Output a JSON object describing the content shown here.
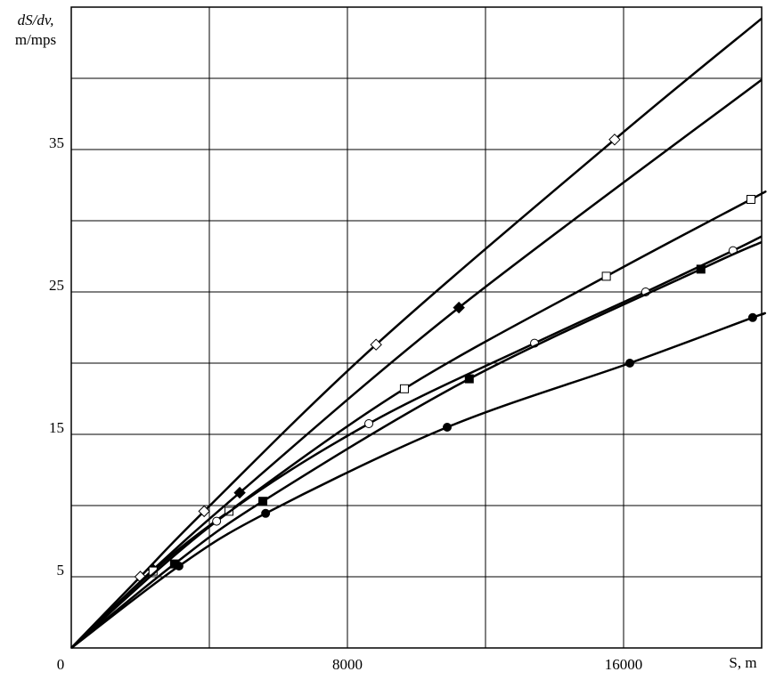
{
  "chart_data": {
    "type": "line",
    "y_label": [
      "dS/dv,",
      "m/mps"
    ],
    "x_label": "S, m",
    "xlim": [
      0,
      20000
    ],
    "ylim": [
      0,
      45
    ],
    "xticks": [
      0,
      8000,
      16000
    ],
    "yticks": [
      5,
      15,
      25,
      35
    ],
    "xgrid": [
      4000,
      8000,
      12000,
      16000
    ],
    "ygrid": [
      5,
      10,
      15,
      20,
      25,
      30,
      35,
      40
    ],
    "grid": true,
    "series": [
      {
        "color": "#000000",
        "marker": "diamond-open",
        "x": [
          0,
          2000,
          3850,
          8830,
          15740,
          20000
        ],
        "values": [
          0,
          5,
          9.6,
          21.3,
          35.7,
          44.2
        ]
      },
      {
        "color": "#000000",
        "marker": "diamond-filled",
        "x": [
          0,
          2370,
          4880,
          11230,
          20000
        ],
        "values": [
          0,
          5.5,
          10.9,
          23.9,
          39.9
        ]
      },
      {
        "color": "#000000",
        "marker": "square-open",
        "x": [
          0,
          2370,
          4570,
          9650,
          15500,
          19690,
          20000
        ],
        "values": [
          0,
          5.4,
          9.6,
          18.2,
          26.1,
          31.5,
          31.9
        ]
      },
      {
        "color": "#000000",
        "marker": "circle-open",
        "x": [
          0,
          4210,
          8620,
          13420,
          16640,
          19170,
          20000
        ],
        "values": [
          0,
          8.9,
          15.75,
          21.4,
          25,
          27.9,
          28.9
        ]
      },
      {
        "color": "#000000",
        "marker": "square-filled",
        "x": [
          0,
          2990,
          5550,
          11530,
          18240,
          20000
        ],
        "values": [
          0,
          5.9,
          10.3,
          18.9,
          26.6,
          28.5
        ]
      },
      {
        "color": "#000000",
        "marker": "circle-filled",
        "x": [
          0,
          3120,
          5630,
          10890,
          16180,
          19740,
          20000
        ],
        "values": [
          0,
          5.75,
          9.45,
          15.5,
          20,
          23.2,
          23.4
        ]
      }
    ]
  }
}
